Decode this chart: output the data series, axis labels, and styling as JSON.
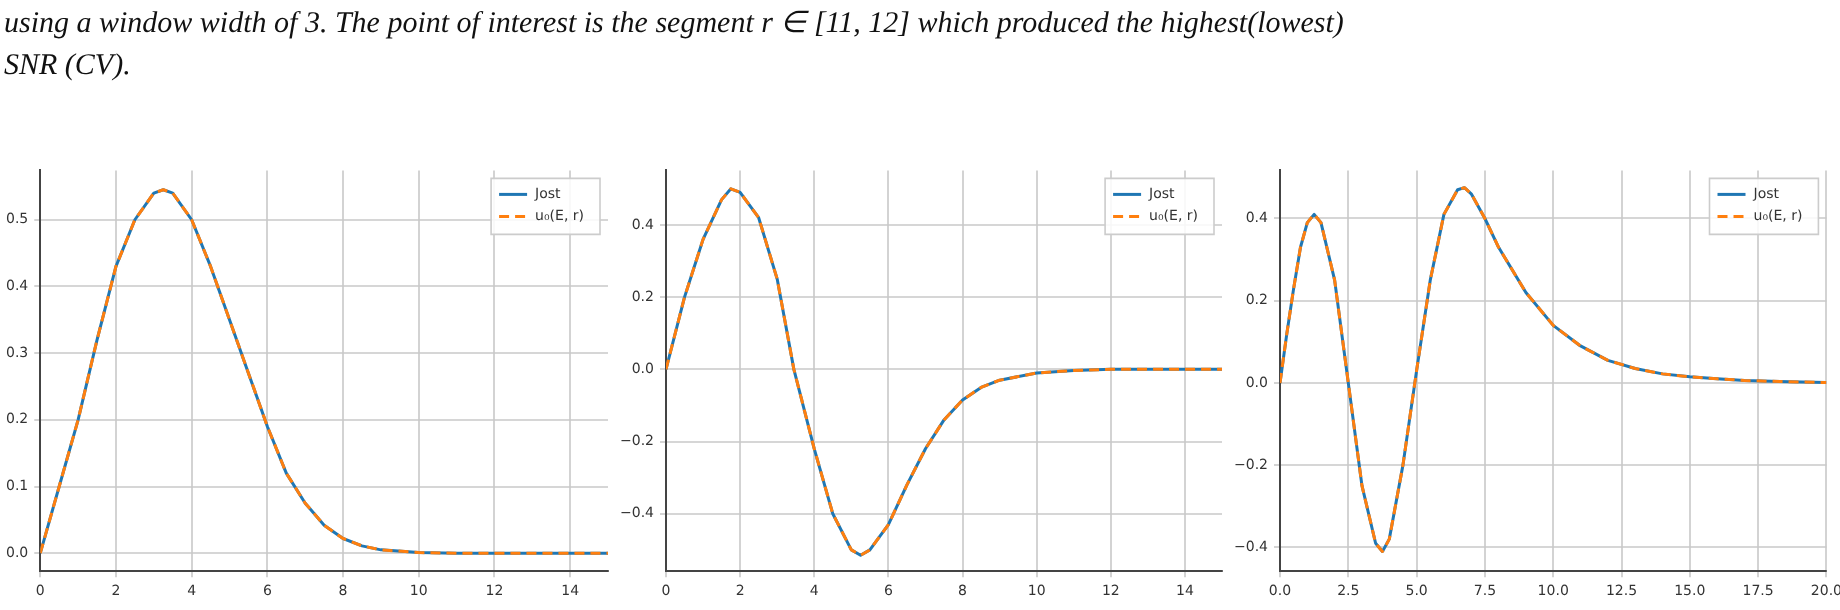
{
  "chart_data": [
    {
      "type": "line",
      "annotations": [
        "using a window width of 3. The point of interest is the segment r ∈ [11, 12] which produced the highest(lowest) SNR (CV)."
      ],
      "xlim": [
        0,
        15
      ],
      "ylim": [
        -0.027,
        0.574
      ],
      "xticks": [
        0,
        2,
        4,
        6,
        8,
        10,
        12,
        14
      ],
      "yticks": [
        {
          "value": 0,
          "label": "0.0"
        },
        0.1,
        0.2,
        0.3,
        0.4,
        0.5
      ],
      "grid": true,
      "legend": "top right",
      "series": [
        {
          "name": "Jost",
          "color": "#1f77b4",
          "line_style": "solid",
          "x": [
            0,
            0.5,
            1,
            1.5,
            2,
            2.5,
            3,
            3.25,
            3.5,
            4,
            4.5,
            5,
            5.5,
            6,
            6.5,
            7,
            7.5,
            8,
            8.5,
            9,
            10,
            11,
            12,
            15
          ],
          "values": [
            0,
            0.1,
            0.2,
            0.32,
            0.43,
            0.5,
            0.54,
            0.545,
            0.54,
            0.5,
            0.43,
            0.35,
            0.27,
            0.19,
            0.12,
            0.075,
            0.042,
            0.022,
            0.011,
            0.005,
            0.001,
            0,
            0,
            0
          ]
        },
        {
          "name": "u₀(E, r)",
          "color": "#ff7f0e",
          "line_style": "dashed",
          "x": [
            0,
            0.5,
            1,
            1.5,
            2,
            2.5,
            3,
            3.25,
            3.5,
            4,
            4.5,
            5,
            5.5,
            6,
            6.5,
            7,
            7.5,
            8,
            8.5,
            9,
            10,
            11,
            12,
            15
          ],
          "values": [
            0,
            0.1,
            0.2,
            0.32,
            0.43,
            0.5,
            0.54,
            0.545,
            0.54,
            0.5,
            0.43,
            0.35,
            0.27,
            0.19,
            0.12,
            0.075,
            0.042,
            0.022,
            0.011,
            0.005,
            0.001,
            0,
            0,
            0
          ]
        }
      ]
    },
    {
      "type": "line",
      "xlim": [
        0,
        15
      ],
      "ylim": [
        -0.559,
        0.551
      ],
      "xticks": [
        0,
        2,
        4,
        6,
        8,
        10,
        12,
        14
      ],
      "yticks": [
        {
          "value": -0.4,
          "label": "−0.4"
        },
        {
          "value": -0.2,
          "label": "−0.2"
        },
        {
          "value": 0,
          "label": "0.0"
        },
        0.2,
        0.4
      ],
      "grid": true,
      "legend": "top right",
      "series": [
        {
          "name": "Jost",
          "color": "#1f77b4",
          "line_style": "solid",
          "x": [
            0,
            0.5,
            1,
            1.5,
            1.75,
            2,
            2.5,
            3,
            3.45,
            4,
            4.5,
            5,
            5.25,
            5.5,
            6,
            6.5,
            7,
            7.5,
            8,
            8.5,
            9,
            10,
            11,
            12,
            15
          ],
          "values": [
            0,
            0.2,
            0.36,
            0.47,
            0.5,
            0.49,
            0.42,
            0.25,
            0,
            -0.22,
            -0.4,
            -0.5,
            -0.515,
            -0.5,
            -0.43,
            -0.32,
            -0.22,
            -0.14,
            -0.085,
            -0.05,
            -0.03,
            -0.01,
            -0.003,
            0,
            0
          ]
        },
        {
          "name": "u₀(E, r)",
          "color": "#ff7f0e",
          "line_style": "dashed",
          "x": [
            0,
            0.5,
            1,
            1.5,
            1.75,
            2,
            2.5,
            3,
            3.45,
            4,
            4.5,
            5,
            5.25,
            5.5,
            6,
            6.5,
            7,
            7.5,
            8,
            8.5,
            9,
            10,
            11,
            12,
            15
          ],
          "values": [
            0,
            0.2,
            0.36,
            0.47,
            0.5,
            0.49,
            0.42,
            0.25,
            0,
            -0.22,
            -0.4,
            -0.5,
            -0.515,
            -0.5,
            -0.43,
            -0.32,
            -0.22,
            -0.14,
            -0.085,
            -0.05,
            -0.03,
            -0.01,
            -0.003,
            0,
            0
          ]
        }
      ]
    },
    {
      "type": "line",
      "xlim": [
        0,
        20
      ],
      "ylim": [
        -0.458,
        0.517
      ],
      "xticks": [
        {
          "value": 0,
          "label": "0.0"
        },
        2.5,
        {
          "value": 5,
          "label": "5.0"
        },
        7.5,
        {
          "value": 10,
          "label": "10.0"
        },
        12.5,
        {
          "value": 15,
          "label": "15.0"
        },
        17.5,
        {
          "value": 20,
          "label": "20.0"
        }
      ],
      "yticks": [
        {
          "value": -0.4,
          "label": "−0.4"
        },
        {
          "value": -0.2,
          "label": "−0.2"
        },
        {
          "value": 0,
          "label": "0.0"
        },
        0.2,
        0.4
      ],
      "grid": true,
      "legend": "top right",
      "series": [
        {
          "name": "Jost",
          "color": "#1f77b4",
          "line_style": "solid",
          "x": [
            0,
            0.25,
            0.5,
            0.75,
            1,
            1.25,
            1.5,
            2,
            2.5,
            3,
            3.5,
            3.75,
            4,
            4.5,
            5,
            5.5,
            6,
            6.5,
            6.75,
            7,
            7.5,
            8,
            9,
            10,
            11,
            12,
            13,
            14,
            15,
            16,
            17,
            18,
            20
          ],
          "values": [
            0,
            0.12,
            0.23,
            0.33,
            0.39,
            0.41,
            0.39,
            0.25,
            0,
            -0.25,
            -0.39,
            -0.41,
            -0.38,
            -0.2,
            0.03,
            0.25,
            0.41,
            0.47,
            0.475,
            0.46,
            0.4,
            0.33,
            0.22,
            0.14,
            0.09,
            0.055,
            0.035,
            0.022,
            0.015,
            0.01,
            0.006,
            0.004,
            0.001
          ]
        },
        {
          "name": "u₀(E, r)",
          "color": "#ff7f0e",
          "line_style": "dashed",
          "x": [
            0,
            0.25,
            0.5,
            0.75,
            1,
            1.25,
            1.5,
            2,
            2.5,
            3,
            3.5,
            3.75,
            4,
            4.5,
            5,
            5.5,
            6,
            6.5,
            6.75,
            7,
            7.5,
            8,
            9,
            10,
            11,
            12,
            13,
            14,
            15,
            16,
            17,
            18,
            20
          ],
          "values": [
            0,
            0.12,
            0.23,
            0.33,
            0.39,
            0.41,
            0.39,
            0.25,
            0,
            -0.25,
            -0.39,
            -0.41,
            -0.38,
            -0.2,
            0.03,
            0.25,
            0.41,
            0.47,
            0.475,
            0.46,
            0.4,
            0.33,
            0.22,
            0.14,
            0.09,
            0.055,
            0.035,
            0.022,
            0.015,
            0.01,
            0.006,
            0.004,
            0.001
          ]
        }
      ]
    }
  ]
}
